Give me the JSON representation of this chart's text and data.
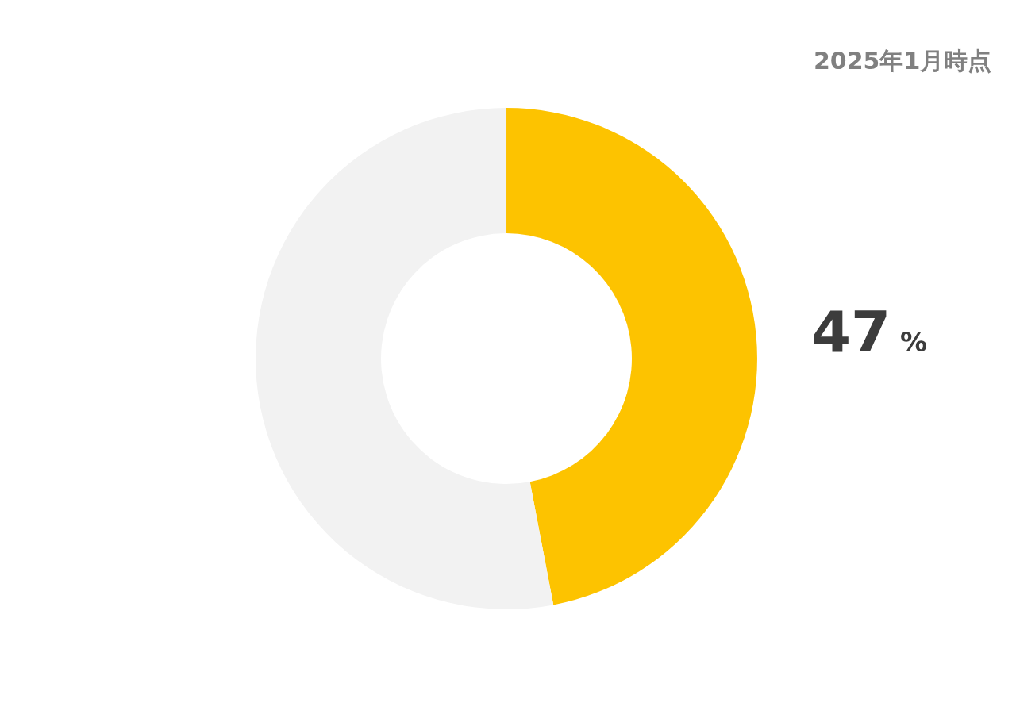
{
  "chart_data": {
    "type": "donut",
    "categories": [
      null,
      null
    ],
    "values": [
      47,
      53
    ],
    "colors": [
      "#fdc300",
      "#f2f2f2"
    ],
    "value_labels": [
      "47 %",
      null
    ],
    "annotations": [
      "2025年1月時点"
    ],
    "legend": false
  }
}
